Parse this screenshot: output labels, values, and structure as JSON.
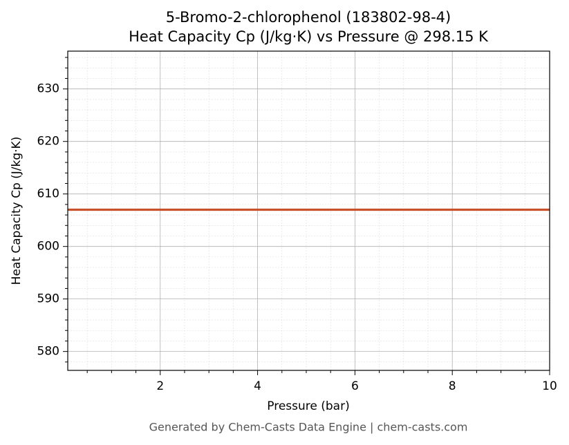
{
  "chart_data": {
    "type": "line",
    "title": "5-Bromo-2-chlorophenol (183802-98-4)",
    "subtitle": "Heat Capacity Cp (J/kg·K) vs Pressure @ 298.15 K",
    "x_label": "Pressure (bar)",
    "y_label": "Heat Capacity Cp (J/kg·K)",
    "footer": "Generated by Chem-Casts Data Engine | chem-casts.com",
    "x": [
      0.1,
      10
    ],
    "series": [
      {
        "name": "Cp",
        "color": "#c8502a",
        "values": [
          607.0,
          607.0
        ]
      }
    ],
    "xlim": [
      0.1,
      10
    ],
    "xticks": [
      2,
      4,
      6,
      8,
      10
    ],
    "xminorticks": [
      0.5,
      1,
      1.5,
      2.5,
      3,
      3.5,
      4.5,
      5,
      5.5,
      6.5,
      7,
      7.5,
      8.5,
      9,
      9.5
    ],
    "ylim": [
      576.4,
      637.2
    ],
    "yticks": [
      580,
      590,
      600,
      610,
      620,
      630
    ],
    "yminorticks": [
      578,
      582,
      584,
      586,
      588,
      592,
      594,
      596,
      598,
      602,
      604,
      606,
      608,
      612,
      614,
      616,
      618,
      622,
      624,
      626,
      628,
      632,
      634,
      636
    ],
    "grid": true,
    "minor_grid": true,
    "legend": false
  }
}
